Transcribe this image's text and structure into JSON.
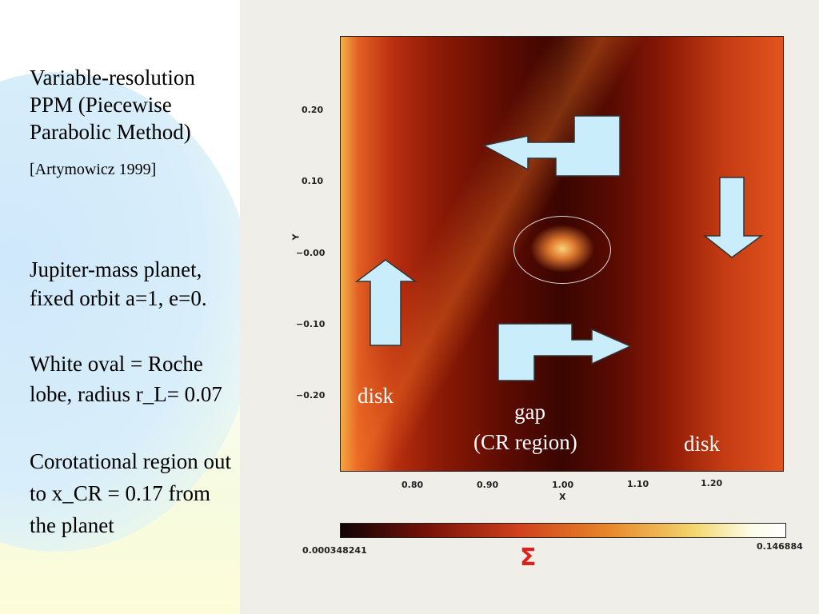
{
  "text": {
    "line1": "Variable-resolution",
    "line2": "PPM (Piecewise",
    "line3": "Parabolic Method)",
    "citation": "[Artymowicz 1999]",
    "planet1": "Jupiter-mass planet,",
    "planet2": "fixed orbit a=1, e=0.",
    "roche1": "White oval = Roche",
    "roche2": "lobe, radius r_L= 0.07",
    "cr1": "Corotational region out",
    "cr2": "to  x_CR = 0.17 from",
    "cr3": "the planet"
  },
  "figure": {
    "y_axis_label": "Y",
    "y_ticks": [
      "0.20",
      "0.10",
      "−0.00",
      "−0.10",
      "−0.20"
    ],
    "x_axis_label": "X",
    "x_ticks": [
      "0.80",
      "0.90",
      "1.00",
      "1.10",
      "1.20"
    ],
    "colorbar_min": "0.000348241",
    "colorbar_max": "0.146884",
    "colorbar_label": "Σ",
    "label_disk_left": "disk",
    "label_gap1": "gap",
    "label_gap2": "(CR region)",
    "label_disk_right": "disk",
    "arrow_color": "#c9edfb"
  }
}
